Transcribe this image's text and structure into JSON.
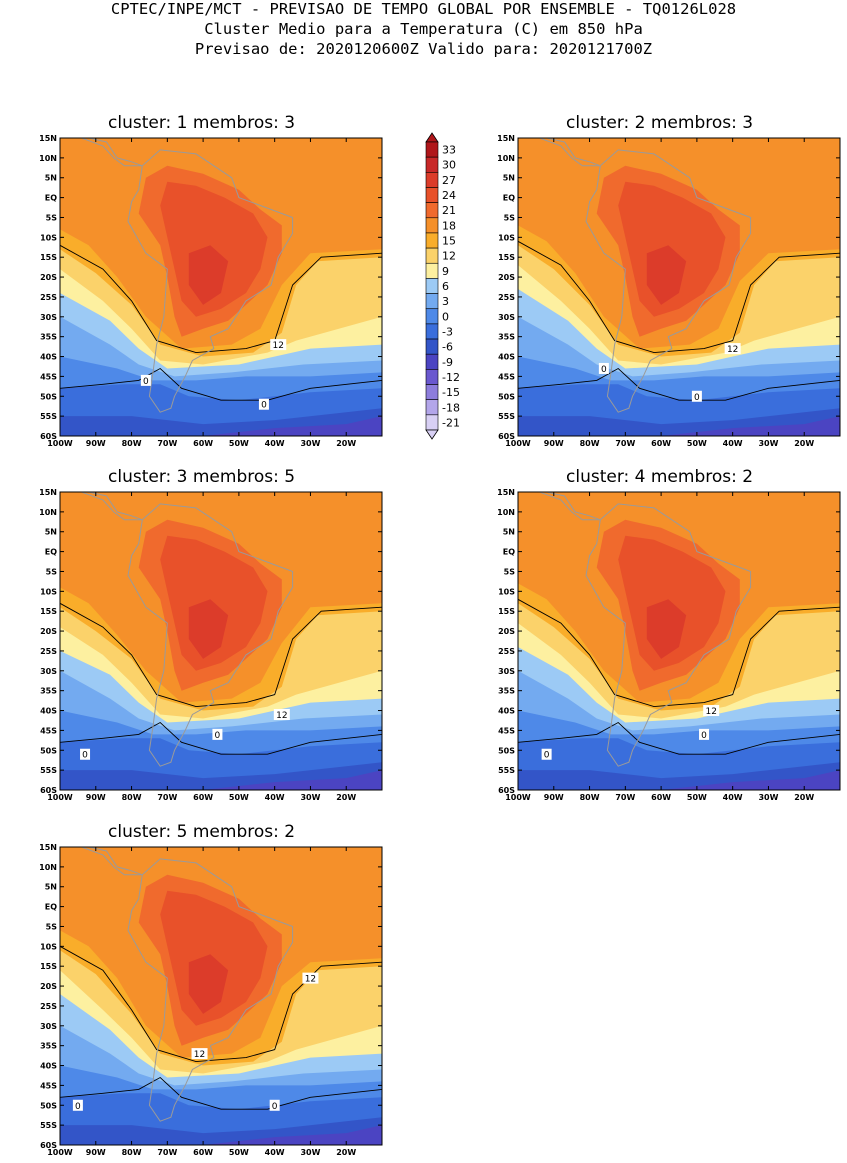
{
  "header": {
    "line1": "CPTEC/INPE/MCT - PREVISAO DE TEMPO GLOBAL POR ENSEMBLE - TQ0126L028",
    "line2": "Cluster Medio para a Temperatura (C) em 850 hPa",
    "line3": "Previsao de: 2020120600Z   Valido para: 2020121700Z"
  },
  "axes": {
    "lat_ticks": [
      "15N",
      "10N",
      "5N",
      "EQ",
      "5S",
      "10S",
      "15S",
      "20S",
      "25S",
      "30S",
      "35S",
      "40S",
      "45S",
      "50S",
      "55S",
      "60S"
    ],
    "lon_ticks": [
      "100W",
      "90W",
      "80W",
      "70W",
      "60W",
      "50W",
      "40W",
      "30W",
      "20W"
    ]
  },
  "colorbar": {
    "labels": [
      "33",
      "30",
      "27",
      "24",
      "21",
      "18",
      "15",
      "12",
      "9",
      "6",
      "3",
      "0",
      "-3",
      "-6",
      "-9",
      "-12",
      "-15",
      "-18",
      "-21"
    ],
    "colors": [
      "#b0161a",
      "#c82828",
      "#dc3c2a",
      "#e8512a",
      "#f06a2d",
      "#f5902a",
      "#f9ad2a",
      "#fbd26a",
      "#fdf0a0",
      "#9ccaf5",
      "#73aaf0",
      "#4e89e8",
      "#3a6edc",
      "#3355c8",
      "#4b44c2",
      "#6a58cf",
      "#8d7ddc",
      "#b3a6ea",
      "#d8d0f4"
    ]
  },
  "panels": [
    {
      "title": "cluster: 1   membros: 3",
      "contour_labels": [
        {
          "text": "12",
          "x": -39,
          "y": -37
        },
        {
          "text": "0",
          "x": -76,
          "y": -46
        },
        {
          "text": "0",
          "x": -43,
          "y": -52
        }
      ]
    },
    {
      "title": "cluster: 2   membros: 3",
      "contour_labels": [
        {
          "text": "12",
          "x": -40,
          "y": -38
        },
        {
          "text": "0",
          "x": -76,
          "y": -43
        },
        {
          "text": "0",
          "x": -50,
          "y": -50
        }
      ]
    },
    {
      "title": "cluster: 3   membros: 5",
      "contour_labels": [
        {
          "text": "12",
          "x": -38,
          "y": -41
        },
        {
          "text": "0",
          "x": -56,
          "y": -46
        },
        {
          "text": "0",
          "x": -93,
          "y": -51
        }
      ]
    },
    {
      "title": "cluster: 4   membros: 2",
      "contour_labels": [
        {
          "text": "12",
          "x": -46,
          "y": -40
        },
        {
          "text": "0",
          "x": -48,
          "y": -46
        },
        {
          "text": "0",
          "x": -92,
          "y": -51
        }
      ]
    },
    {
      "title": "cluster: 5   membros: 2",
      "contour_labels": [
        {
          "text": "12",
          "x": -30,
          "y": -18
        },
        {
          "text": "12",
          "x": -61,
          "y": -37
        },
        {
          "text": "0",
          "x": -95,
          "y": -50
        },
        {
          "text": "0",
          "x": -40,
          "y": -50
        }
      ]
    }
  ]
}
